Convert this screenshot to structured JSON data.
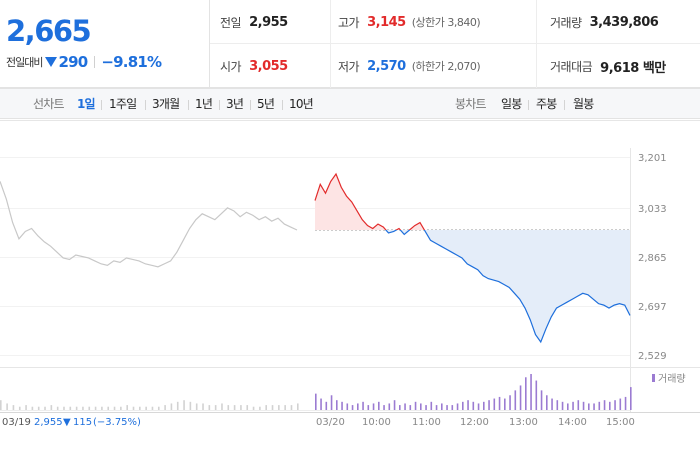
{
  "quote": {
    "current": "2,665",
    "change_label": "전일대비",
    "change": "290",
    "change_pct": "−9.81%",
    "direction_icon": "down-triangle-icon",
    "down_color": "#1e6fdc",
    "up_color": "#e22b2b"
  },
  "stats": [
    [
      {
        "label": "전일",
        "value": "2,955",
        "tone": "neutral",
        "extra": ""
      },
      {
        "label": "고가",
        "value": "3,145",
        "tone": "up",
        "extra": "(상한가 3,840)"
      },
      {
        "label": "거래량",
        "value": "3,439,806",
        "tone": "neutral",
        "extra": ""
      }
    ],
    [
      {
        "label": "시가",
        "value": "3,055",
        "tone": "up",
        "extra": ""
      },
      {
        "label": "저가",
        "value": "2,570",
        "tone": "down",
        "extra": "(하한가 2,070)"
      },
      {
        "label": "거래대금",
        "value": "9,618 백만",
        "tone": "neutral",
        "extra": ""
      }
    ]
  ],
  "tabs": {
    "line_label": "선차트",
    "line_options": [
      "1일",
      "1주일",
      "3개월",
      "1년",
      "3년",
      "5년",
      "10년"
    ],
    "line_selected": "1일",
    "candle_label": "봉차트",
    "candle_options": [
      "일봉",
      "주봉",
      "월봉"
    ]
  },
  "chart_data": {
    "type": "line",
    "y_ticks": [
      "3,201",
      "3,033",
      "2,865",
      "2,697",
      "2,529"
    ],
    "ylim": [
      2529,
      3201
    ],
    "prev_close": 2955,
    "x_ticks": [
      "03/20",
      "10:00",
      "11:00",
      "12:00",
      "13:00",
      "14:00",
      "15:00"
    ],
    "volume_legend": "거래량",
    "prev_day_summary": {
      "date": "03/19",
      "close": "2,955",
      "change": "115",
      "pct": "(−3.75%)"
    },
    "series": [
      {
        "name": "03/19",
        "color": "#c8c8c8",
        "values": [
          3120,
          3060,
          2980,
          2925,
          2950,
          2960,
          2935,
          2915,
          2900,
          2880,
          2860,
          2855,
          2870,
          2865,
          2860,
          2850,
          2840,
          2835,
          2850,
          2845,
          2860,
          2855,
          2850,
          2840,
          2835,
          2830,
          2840,
          2850,
          2880,
          2920,
          2960,
          2990,
          3010,
          3000,
          2990,
          3010,
          3030,
          3020,
          3000,
          3015,
          3005,
          2990,
          3000,
          2985,
          2995,
          2975,
          2965,
          2955
        ]
      },
      {
        "name": "03/20",
        "values": [
          3055,
          3110,
          3080,
          3120,
          3145,
          3100,
          3070,
          3050,
          3020,
          2990,
          2970,
          2960,
          2975,
          2965,
          2945,
          2950,
          2960,
          2940,
          2955,
          2970,
          2980,
          2950,
          2920,
          2910,
          2900,
          2890,
          2880,
          2870,
          2860,
          2840,
          2830,
          2820,
          2800,
          2790,
          2785,
          2780,
          2770,
          2760,
          2740,
          2720,
          2690,
          2650,
          2600,
          2575,
          2620,
          2660,
          2690,
          2700,
          2710,
          2720,
          2730,
          2740,
          2735,
          2720,
          2705,
          2700,
          2690,
          2700,
          2705,
          2700,
          2665
        ]
      }
    ],
    "volume_prev": [
      6,
      4,
      3,
      2,
      3,
      2,
      2,
      2,
      3,
      2,
      2,
      2,
      2,
      2,
      2,
      2,
      2,
      2,
      2,
      2,
      3,
      2,
      2,
      2,
      2,
      2,
      3,
      4,
      5,
      6,
      5,
      4,
      4,
      3,
      3,
      4,
      3,
      3,
      3,
      3,
      2,
      2,
      3,
      3,
      3,
      3,
      3,
      4
    ],
    "volume_today": [
      10,
      7,
      5,
      9,
      6,
      5,
      4,
      3,
      4,
      5,
      3,
      4,
      5,
      3,
      4,
      6,
      3,
      4,
      3,
      5,
      4,
      3,
      5,
      3,
      4,
      3,
      3,
      4,
      5,
      6,
      5,
      4,
      5,
      6,
      7,
      8,
      7,
      9,
      12,
      15,
      20,
      22,
      18,
      12,
      9,
      7,
      6,
      5,
      4,
      5,
      6,
      5,
      4,
      4,
      5,
      6,
      5,
      6,
      7,
      8,
      14
    ]
  }
}
